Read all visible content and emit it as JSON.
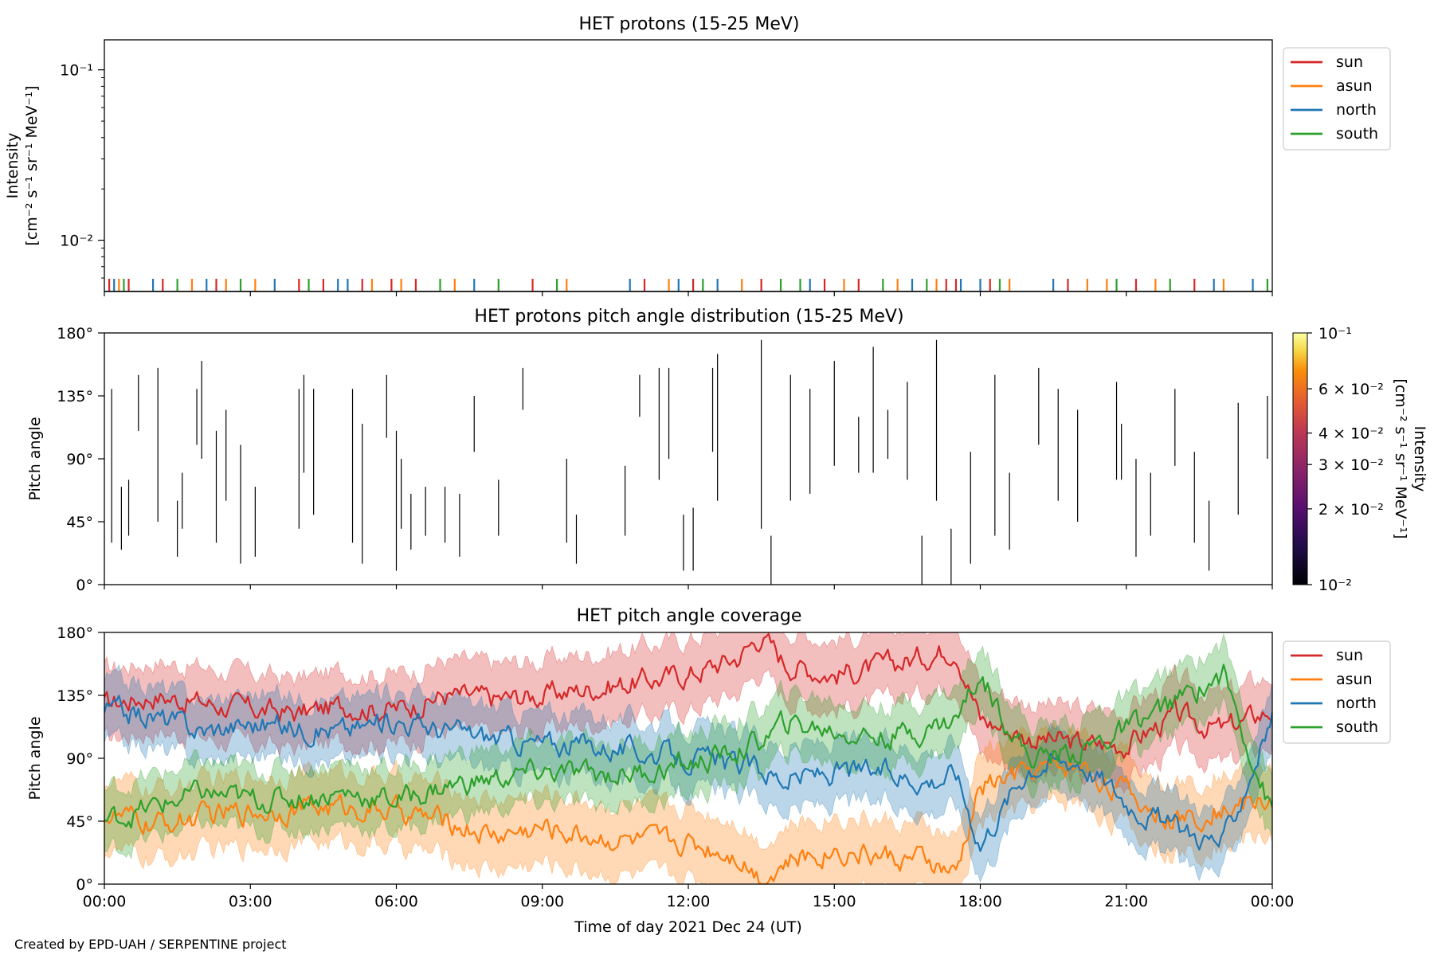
{
  "chart_data": [
    {
      "type": "line",
      "title": "HET protons (15-25 MeV)",
      "ylabel_line1": "Intensity",
      "ylabel_line2": "[cm⁻² s⁻¹ sr⁻¹ MeV⁻¹]",
      "y_scale": "log",
      "ylim": [
        0.005,
        0.15
      ],
      "yticks": [
        {
          "value": 0.1,
          "label": "10⁻¹"
        },
        {
          "value": 0.01,
          "label": "10⁻²"
        }
      ],
      "xlim": [
        0,
        24
      ],
      "legend_position": "outside-right",
      "series": [
        {
          "name": "sun",
          "color": "#d62728",
          "spike_times": [
            0.1,
            0.5,
            1.2,
            2.3,
            4.0,
            4.5,
            5.3,
            5.9,
            6.4,
            8.8,
            11.1,
            12.1,
            13.5,
            14.8,
            15.5,
            17.3,
            17.5,
            18.2,
            19.8,
            21.2,
            22.4
          ]
        },
        {
          "name": "asun",
          "color": "#ff7f0e",
          "spike_times": [
            0.3,
            1.8,
            2.5,
            3.1,
            5.5,
            6.1,
            7.2,
            9.5,
            11.6,
            13.1,
            15.2,
            16.3,
            17.1,
            18.6,
            20.2,
            20.6,
            21.6,
            23.0
          ]
        },
        {
          "name": "north",
          "color": "#1f77b4",
          "spike_times": [
            0.2,
            1.0,
            2.1,
            3.5,
            4.8,
            5.0,
            7.6,
            10.8,
            11.8,
            12.6,
            14.5,
            16.6,
            17.6,
            18.0,
            19.5,
            22.8,
            23.6
          ]
        },
        {
          "name": "south",
          "color": "#2ca02c",
          "spike_times": [
            0.4,
            1.5,
            2.8,
            4.2,
            6.9,
            8.1,
            9.3,
            12.3,
            13.9,
            14.3,
            16.0,
            16.9,
            18.4,
            20.8,
            21.9,
            23.9
          ]
        }
      ]
    },
    {
      "type": "heatmap",
      "title": "HET protons pitch angle distribution (15-25 MeV)",
      "ylabel": "Pitch angle",
      "ylim": [
        0,
        180
      ],
      "yticks": [
        {
          "value": 0,
          "label": "0°"
        },
        {
          "value": 45,
          "label": "45°"
        },
        {
          "value": 90,
          "label": "90°"
        },
        {
          "value": 135,
          "label": "135°"
        },
        {
          "value": 180,
          "label": "180°"
        }
      ],
      "xlim": [
        0,
        24
      ],
      "colorbar": {
        "label_line1": "Intensity",
        "label_line2": "[cm⁻² s⁻¹ sr⁻¹ MeV⁻¹]",
        "range": [
          0.01,
          0.1
        ],
        "ticks": [
          {
            "value": 0.1,
            "label": "10⁻¹"
          },
          {
            "value": 0.06,
            "label": "6 × 10⁻²"
          },
          {
            "value": 0.04,
            "label": "4 × 10⁻²"
          },
          {
            "value": 0.03,
            "label": "3 × 10⁻²"
          },
          {
            "value": 0.02,
            "label": "2 × 10⁻²"
          },
          {
            "value": 0.01,
            "label": "10⁻²"
          }
        ]
      },
      "segments": [
        [
          0.15,
          30,
          140
        ],
        [
          0.35,
          25,
          70
        ],
        [
          0.5,
          35,
          75
        ],
        [
          0.7,
          110,
          150
        ],
        [
          1.1,
          45,
          155
        ],
        [
          1.5,
          20,
          60
        ],
        [
          1.6,
          40,
          80
        ],
        [
          1.9,
          100,
          140
        ],
        [
          2.0,
          90,
          160
        ],
        [
          2.3,
          30,
          110
        ],
        [
          2.5,
          60,
          125
        ],
        [
          2.8,
          15,
          100
        ],
        [
          3.1,
          20,
          70
        ],
        [
          4.0,
          40,
          140
        ],
        [
          4.1,
          80,
          150
        ],
        [
          4.3,
          50,
          140
        ],
        [
          5.1,
          30,
          140
        ],
        [
          5.3,
          15,
          115
        ],
        [
          5.8,
          105,
          150
        ],
        [
          6.0,
          10,
          110
        ],
        [
          6.1,
          40,
          90
        ],
        [
          6.3,
          25,
          65
        ],
        [
          6.6,
          35,
          70
        ],
        [
          7.0,
          30,
          70
        ],
        [
          7.3,
          20,
          65
        ],
        [
          7.6,
          95,
          135
        ],
        [
          8.1,
          35,
          75
        ],
        [
          8.6,
          125,
          155
        ],
        [
          9.5,
          30,
          90
        ],
        [
          9.7,
          15,
          50
        ],
        [
          10.7,
          35,
          85
        ],
        [
          11.0,
          120,
          150
        ],
        [
          11.4,
          75,
          155
        ],
        [
          11.6,
          90,
          155
        ],
        [
          11.9,
          10,
          50
        ],
        [
          12.1,
          10,
          55
        ],
        [
          12.5,
          95,
          155
        ],
        [
          12.6,
          60,
          165
        ],
        [
          13.5,
          40,
          175
        ],
        [
          13.7,
          0,
          35
        ],
        [
          14.1,
          60,
          150
        ],
        [
          14.5,
          65,
          140
        ],
        [
          15.0,
          85,
          160
        ],
        [
          15.5,
          80,
          120
        ],
        [
          15.8,
          80,
          170
        ],
        [
          16.1,
          90,
          125
        ],
        [
          16.5,
          75,
          145
        ],
        [
          16.8,
          0,
          35
        ],
        [
          17.1,
          60,
          175
        ],
        [
          17.4,
          0,
          40
        ],
        [
          17.8,
          15,
          95
        ],
        [
          18.3,
          35,
          150
        ],
        [
          18.6,
          25,
          80
        ],
        [
          19.2,
          100,
          155
        ],
        [
          19.6,
          60,
          140
        ],
        [
          20.0,
          45,
          125
        ],
        [
          20.8,
          75,
          145
        ],
        [
          20.9,
          75,
          115
        ],
        [
          21.2,
          20,
          90
        ],
        [
          21.5,
          35,
          80
        ],
        [
          22.0,
          85,
          140
        ],
        [
          22.4,
          30,
          95
        ],
        [
          22.7,
          10,
          60
        ],
        [
          23.3,
          50,
          130
        ],
        [
          23.9,
          90,
          135
        ]
      ]
    },
    {
      "type": "line",
      "title": "HET pitch angle coverage",
      "ylabel": "Pitch angle",
      "xlabel": "Time of day 2021 Dec 24 (UT)",
      "ylim": [
        0,
        180
      ],
      "yticks": [
        {
          "value": 0,
          "label": "0°"
        },
        {
          "value": 45,
          "label": "45°"
        },
        {
          "value": 90,
          "label": "90°"
        },
        {
          "value": 135,
          "label": "135°"
        },
        {
          "value": 180,
          "label": "180°"
        }
      ],
      "xlim": [
        0,
        24
      ],
      "xticks": [
        {
          "value": 0,
          "label": "00:00"
        },
        {
          "value": 3,
          "label": "03:00"
        },
        {
          "value": 6,
          "label": "06:00"
        },
        {
          "value": 9,
          "label": "09:00"
        },
        {
          "value": 12,
          "label": "12:00"
        },
        {
          "value": 15,
          "label": "15:00"
        },
        {
          "value": 18,
          "label": "18:00"
        },
        {
          "value": 21,
          "label": "21:00"
        },
        {
          "value": 24,
          "label": "00:00"
        }
      ],
      "legend_position": "outside-right",
      "series": [
        {
          "name": "sun",
          "color": "#d62728",
          "band_halfwidth": 25,
          "x": [
            0,
            1,
            2,
            3,
            4,
            5,
            6,
            7,
            8,
            9,
            10,
            11,
            12,
            13,
            13.5,
            14,
            15,
            16,
            17,
            17.5,
            18,
            19,
            20,
            21,
            22,
            23,
            24
          ],
          "values": [
            128,
            135,
            130,
            125,
            122,
            128,
            125,
            135,
            132,
            135,
            140,
            145,
            150,
            162,
            178,
            158,
            150,
            155,
            165,
            170,
            118,
            105,
            100,
            100,
            120,
            110,
            125
          ]
        },
        {
          "name": "asun",
          "color": "#ff7f0e",
          "band_halfwidth": 25,
          "x": [
            0,
            1,
            2,
            3,
            4,
            5,
            6,
            7,
            8,
            9,
            10,
            11,
            12,
            13,
            13.5,
            14,
            15,
            16,
            17,
            17.5,
            18,
            19,
            20,
            21,
            22,
            23,
            24
          ],
          "values": [
            50,
            42,
            48,
            52,
            55,
            55,
            52,
            45,
            35,
            40,
            35,
            30,
            30,
            22,
            5,
            15,
            25,
            20,
            15,
            5,
            70,
            80,
            85,
            65,
            45,
            55,
            60
          ]
        },
        {
          "name": "north",
          "color": "#1f77b4",
          "band_halfwidth": 22,
          "x": [
            0,
            1,
            2,
            3,
            4,
            5,
            6,
            7,
            8,
            9,
            10,
            11,
            12,
            13,
            13.5,
            14,
            15,
            16,
            17,
            17.5,
            18,
            19,
            20,
            21,
            22,
            23,
            24
          ],
          "values": [
            125,
            120,
            110,
            115,
            112,
            110,
            118,
            110,
            105,
            100,
            100,
            95,
            90,
            85,
            82,
            75,
            80,
            80,
            75,
            80,
            30,
            85,
            90,
            60,
            40,
            30,
            120
          ]
        },
        {
          "name": "south",
          "color": "#2ca02c",
          "band_halfwidth": 22,
          "x": [
            0,
            1,
            2,
            3,
            4,
            5,
            6,
            7,
            8,
            9,
            10,
            11,
            12,
            13,
            13.5,
            14,
            15,
            16,
            17,
            17.5,
            18,
            19,
            20,
            21,
            22,
            23,
            24
          ],
          "values": [
            45,
            55,
            65,
            60,
            62,
            65,
            60,
            70,
            75,
            80,
            78,
            80,
            85,
            95,
            102,
            115,
            110,
            105,
            112,
            118,
            150,
            90,
            95,
            110,
            130,
            150,
            50
          ]
        }
      ]
    }
  ],
  "footer": {
    "credit": "Created by EPD-UAH / SERPENTINE project"
  }
}
